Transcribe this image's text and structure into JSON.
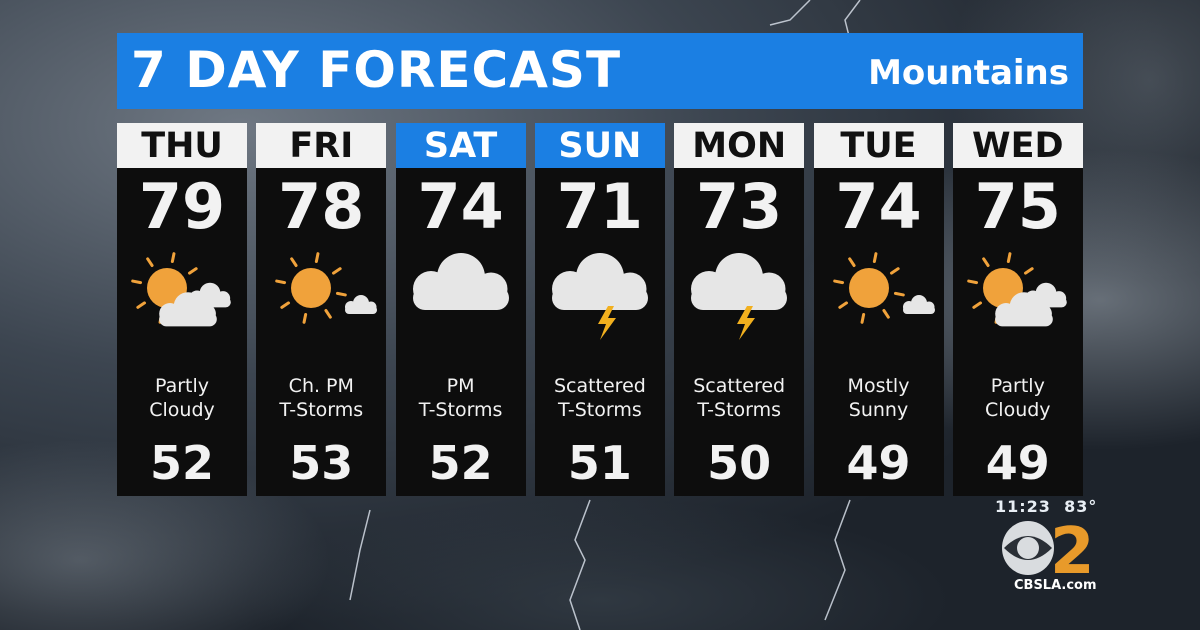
{
  "header": {
    "title": "7 DAY FORECAST",
    "region": "Mountains"
  },
  "colors": {
    "header_blue": "#1b7fe3",
    "sun": "#f0a23b",
    "panel": "#0d0d0d"
  },
  "days": [
    {
      "day": "THU",
      "high": "79",
      "low": "52",
      "desc1": "Partly",
      "desc2": "Cloudy",
      "icon": "partly-cloudy",
      "weekend": false
    },
    {
      "day": "FRI",
      "high": "78",
      "low": "53",
      "desc1": "Ch. PM",
      "desc2": "T-Storms",
      "icon": "sun-small-cloud",
      "weekend": false
    },
    {
      "day": "SAT",
      "high": "74",
      "low": "52",
      "desc1": "PM",
      "desc2": "T-Storms",
      "icon": "cloud",
      "weekend": true
    },
    {
      "day": "SUN",
      "high": "71",
      "low": "51",
      "desc1": "Scattered",
      "desc2": "T-Storms",
      "icon": "thunderstorm",
      "weekend": true
    },
    {
      "day": "MON",
      "high": "73",
      "low": "50",
      "desc1": "Scattered",
      "desc2": "T-Storms",
      "icon": "thunderstorm",
      "weekend": false
    },
    {
      "day": "TUE",
      "high": "74",
      "low": "49",
      "desc1": "Mostly",
      "desc2": "Sunny",
      "icon": "sun-small-cloud",
      "weekend": false
    },
    {
      "day": "WED",
      "high": "75",
      "low": "49",
      "desc1": "Partly",
      "desc2": "Cloudy",
      "icon": "partly-cloudy",
      "weekend": false
    }
  ],
  "status": {
    "time": "11:23",
    "temp": "83°"
  },
  "branding": {
    "logo": "CBS 2",
    "site": "CBSLA.com"
  }
}
